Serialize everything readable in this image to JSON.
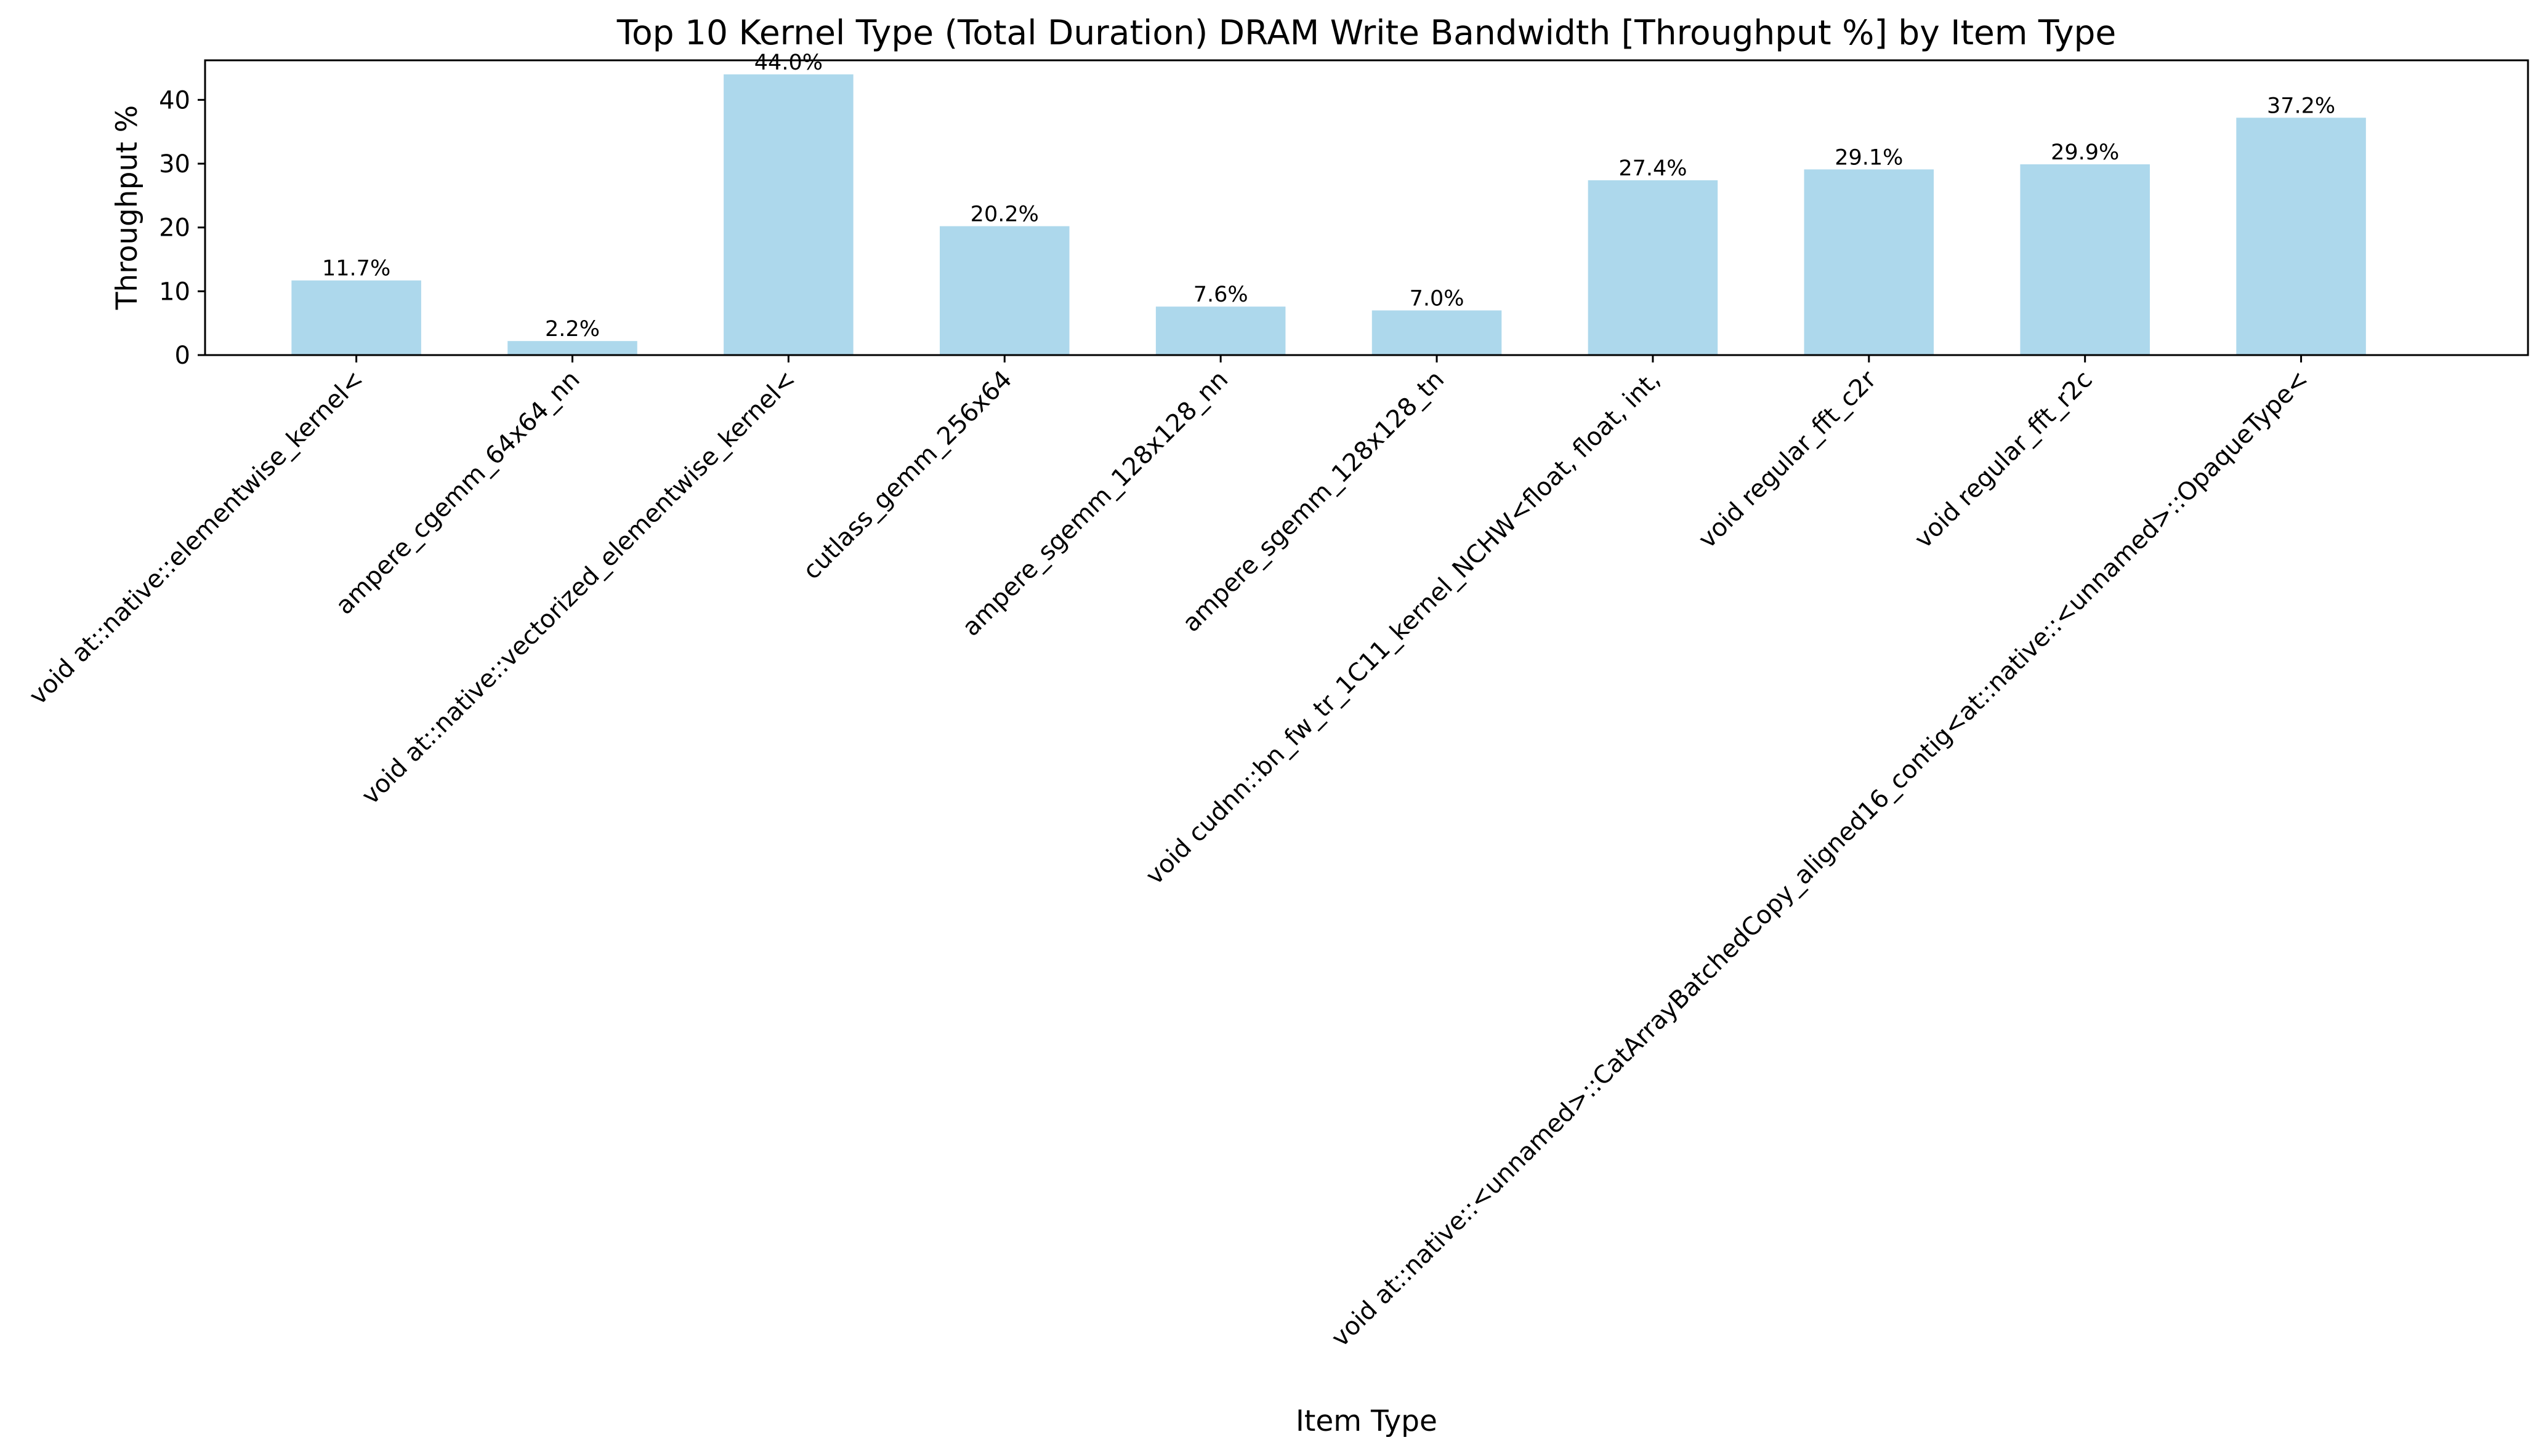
{
  "chart_data": {
    "type": "bar",
    "title": "Top 10 Kernel Type (Total Duration) DRAM Write Bandwidth [Throughput %] by Item Type",
    "xlabel": "Item Type",
    "ylabel": "Throughput %",
    "ylim": [
      0,
      46.2
    ],
    "yticks": [
      0,
      10,
      20,
      30,
      40
    ],
    "grid": false,
    "bar_color": "#add8ec",
    "categories": [
      "void at::native::elementwise_kernel<",
      "ampere_cgemm_64x64_nn",
      "void at::native::vectorized_elementwise_kernel<",
      "cutlass_gemm_256x64",
      "ampere_sgemm_128x128_nn",
      "ampere_sgemm_128x128_tn",
      "void cudnn::bn_fw_tr_1C11_kernel_NCHW<float, float, int,",
      "void regular_fft_c2r",
      "void regular_fft_r2c",
      "void at::native::<unnamed>::CatArrayBatchedCopy_aligned16_contig<at::native::<unnamed>::OpaqueType<"
    ],
    "values": [
      11.7,
      2.2,
      44.0,
      20.2,
      7.6,
      7.0,
      27.4,
      29.1,
      29.9,
      37.2
    ],
    "data_labels": [
      "11.7%",
      "2.2%",
      "44.0%",
      "20.2%",
      "7.6%",
      "7.0%",
      "27.4%",
      "29.1%",
      "29.9%",
      "37.2%"
    ]
  }
}
